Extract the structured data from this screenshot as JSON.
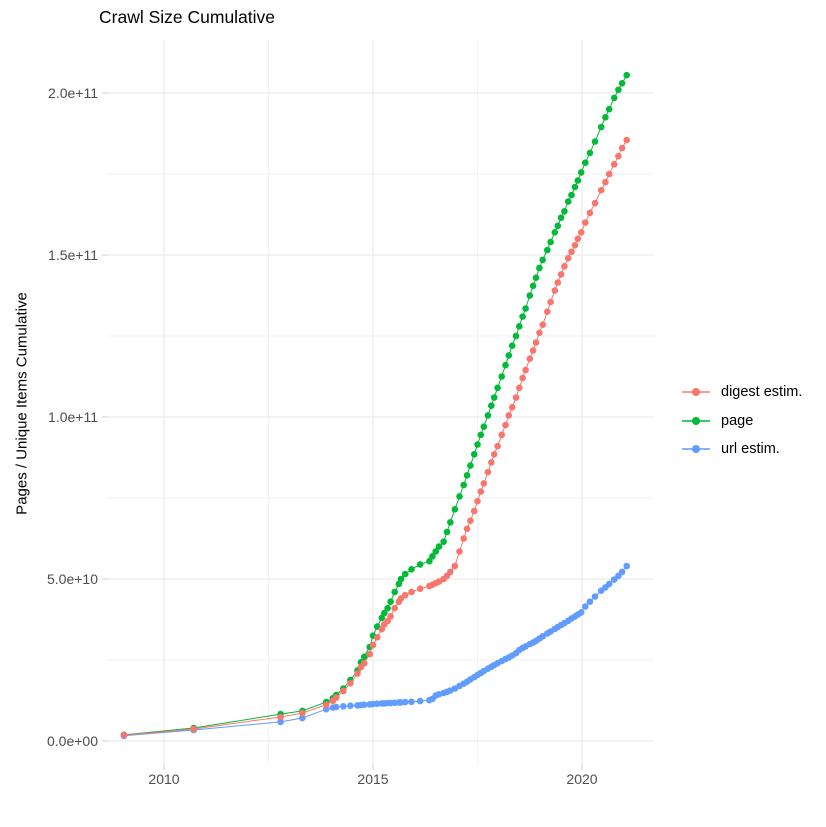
{
  "title": "Crawl Size Cumulative",
  "axes": {
    "y_title": "Pages / Unique Items Cumulative",
    "x_tick_labels": [
      "2010",
      "2015",
      "2020"
    ],
    "y_tick_labels": [
      "0.0e+00",
      "5.0e+10",
      "1.0e+11",
      "1.5e+11",
      "2.0e+11"
    ]
  },
  "legend": {
    "items": [
      {
        "label": "digest estim.",
        "color": "#F8766D"
      },
      {
        "label": "page",
        "color": "#00BA38"
      },
      {
        "label": "url estim.",
        "color": "#619CFF"
      }
    ]
  },
  "colors": {
    "grid_major": "#e7e7e7",
    "grid_minor": "#f2f2f2",
    "tick_mark": "#cfcfcf",
    "tick_text": "#4d4d4d",
    "background": "#ffffff"
  },
  "chart_data": {
    "type": "line",
    "title": "Crawl Size Cumulative",
    "xlabel": "",
    "ylabel": "Pages / Unique Items Cumulative",
    "x_ticks": [
      2010,
      2015,
      2020
    ],
    "x_minor_ticks": [
      2012.5,
      2017.5
    ],
    "y_ticks": [
      0,
      50000000000.0,
      100000000000.0,
      150000000000.0,
      200000000000.0
    ],
    "y_minor_ticks": [
      25000000000.0,
      75000000000.0,
      125000000000.0,
      175000000000.0
    ],
    "y_tick_labels": [
      "0.0e+00",
      "5.0e+10",
      "1.0e+11",
      "1.5e+11",
      "2.0e+11"
    ],
    "x_tick_labels": [
      "2010",
      "2015",
      "2020"
    ],
    "xlim": [
      2008.6,
      2021.8
    ],
    "ylim": [
      -7000000000.0,
      218000000000.0
    ],
    "grid": true,
    "legend_position": "right",
    "marker_radius_px": 3.3,
    "y_unit_multiplier": 1000000000.0,
    "x_years": [
      2009.04,
      2010.71,
      2012.79,
      2013.31,
      2013.88,
      2014.04,
      2014.12,
      2014.29,
      2014.46,
      2014.63,
      2014.71,
      2014.79,
      2014.92,
      2015.0,
      2015.1,
      2015.21,
      2015.27,
      2015.35,
      2015.42,
      2015.52,
      2015.62,
      2015.67,
      2015.77,
      2015.92,
      2016.13,
      2016.35,
      2016.42,
      2016.5,
      2016.58,
      2016.69,
      2016.77,
      2016.85,
      2016.96,
      2017.07,
      2017.17,
      2017.25,
      2017.33,
      2017.42,
      2017.5,
      2017.58,
      2017.65,
      2017.75,
      2017.83,
      2017.9,
      2017.98,
      2018.08,
      2018.17,
      2018.25,
      2018.33,
      2018.42,
      2018.5,
      2018.58,
      2018.65,
      2018.75,
      2018.83,
      2018.9,
      2018.98,
      2019.06,
      2019.17,
      2019.25,
      2019.35,
      2019.42,
      2019.5,
      2019.58,
      2019.67,
      2019.75,
      2019.83,
      2019.9,
      2019.98,
      2020.08,
      2020.19,
      2020.31,
      2020.46,
      2020.56,
      2020.65,
      2020.77,
      2020.87,
      2020.96,
      2021.07
    ],
    "series": [
      {
        "name": "digest estim.",
        "color": "#F8766D",
        "values_e9": [
          1.8,
          3.7,
          7.4,
          8.6,
          11.2,
          12.4,
          13.4,
          15.4,
          17.8,
          20.8,
          22.8,
          24.0,
          26.8,
          29.6,
          32.0,
          34.5,
          36.0,
          37.0,
          38.5,
          41.0,
          43.0,
          44.0,
          45.0,
          46.0,
          47.0,
          47.8,
          48.2,
          48.7,
          49.2,
          50.0,
          51.0,
          52.2,
          54.0,
          58.5,
          62.5,
          65.5,
          68.0,
          71.0,
          74.0,
          77.0,
          79.5,
          83.0,
          86.0,
          88.5,
          91.0,
          94.5,
          97.5,
          100.5,
          103.0,
          106.0,
          109.0,
          112.0,
          114.5,
          118.0,
          120.5,
          123.0,
          126.0,
          128.5,
          132.5,
          135.5,
          139.0,
          141.5,
          144.0,
          146.5,
          149.0,
          151.0,
          153.0,
          155.0,
          157.0,
          160.0,
          163.0,
          166.0,
          170.0,
          172.5,
          175.0,
          178.0,
          180.5,
          183.0,
          185.5
        ]
      },
      {
        "name": "page",
        "color": "#00BA38",
        "values_e9": [
          1.9,
          4.0,
          8.3,
          9.3,
          12.0,
          13.2,
          14.2,
          16.2,
          18.8,
          21.8,
          24.3,
          26.0,
          29.0,
          32.5,
          35.3,
          38.0,
          39.5,
          41.0,
          43.0,
          46.0,
          48.5,
          50.0,
          51.5,
          53.0,
          54.5,
          55.5,
          57.0,
          58.5,
          60.0,
          61.5,
          64.5,
          67.5,
          71.5,
          75.5,
          79.0,
          82.0,
          85.0,
          88.5,
          91.5,
          94.5,
          97.0,
          100.5,
          103.5,
          106.0,
          109.0,
          112.5,
          116.0,
          119.0,
          122.0,
          125.0,
          128.0,
          131.0,
          133.5,
          137.5,
          140.5,
          143.0,
          146.0,
          148.5,
          151.5,
          154.0,
          157.0,
          159.0,
          161.5,
          163.5,
          166.5,
          168.5,
          171.0,
          173.0,
          175.5,
          178.5,
          181.5,
          185.0,
          189.5,
          192.5,
          195.0,
          198.5,
          201.0,
          203.0,
          205.5
        ]
      },
      {
        "name": "url estim.",
        "color": "#619CFF",
        "values_e9": [
          1.6,
          3.4,
          5.9,
          7.1,
          9.8,
          10.3,
          10.5,
          10.7,
          10.9,
          11.0,
          11.1,
          11.2,
          11.3,
          11.4,
          11.5,
          11.6,
          11.6,
          11.7,
          11.7,
          11.8,
          11.9,
          11.9,
          12.0,
          12.1,
          12.3,
          12.6,
          13.0,
          14.0,
          14.4,
          14.8,
          15.2,
          15.6,
          16.2,
          17.0,
          17.7,
          18.3,
          19.0,
          19.7,
          20.4,
          21.0,
          21.6,
          22.3,
          22.9,
          23.4,
          24.0,
          24.7,
          25.3,
          25.8,
          26.4,
          27.1,
          28.1,
          28.7,
          29.2,
          29.9,
          30.4,
          30.9,
          31.6,
          32.3,
          33.2,
          33.8,
          34.6,
          35.2,
          35.8,
          36.4,
          37.1,
          37.8,
          38.4,
          39.0,
          39.7,
          41.5,
          43.0,
          44.6,
          46.4,
          47.4,
          48.5,
          49.8,
          51.0,
          52.2,
          54.0
        ]
      }
    ],
    "draw_order": [
      "page",
      "url estim.",
      "digest estim."
    ]
  }
}
